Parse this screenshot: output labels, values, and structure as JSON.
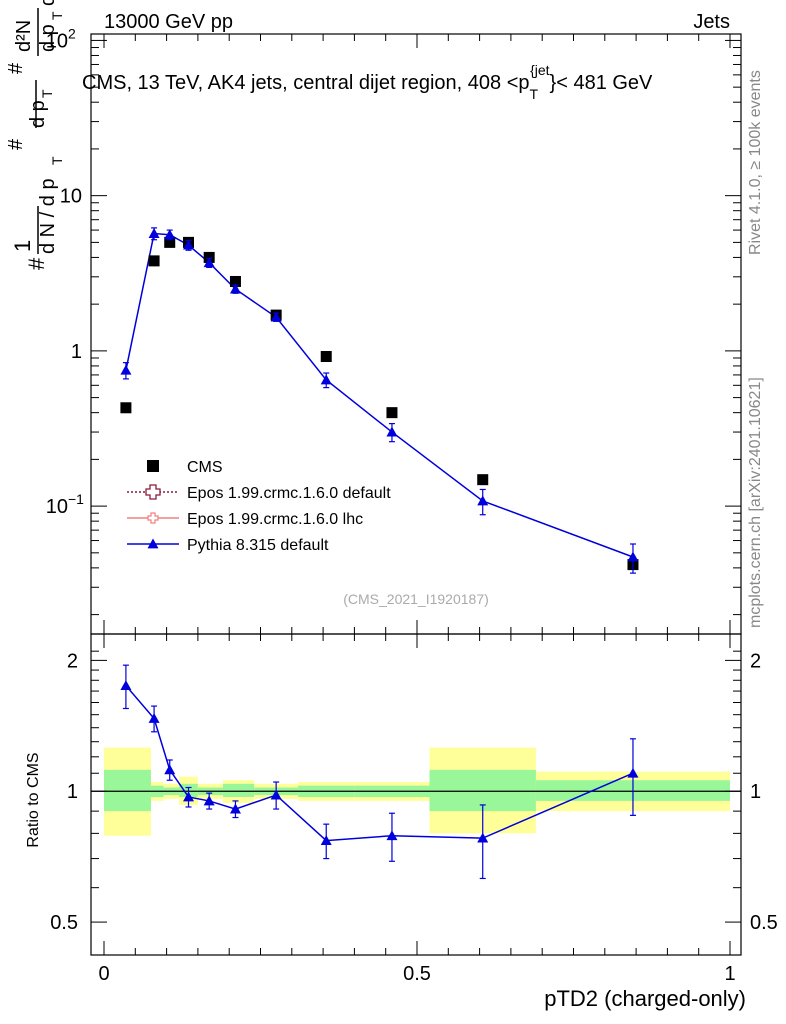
{
  "header": {
    "left": "13000 GeV pp",
    "right": "Jets"
  },
  "side_labels": {
    "rivet": "Rivet 4.1.0, ≥ 100k events",
    "mcplots": "mcplots.cern.ch [arXiv:2401.10621]"
  },
  "chart_data": {
    "type": "scatter",
    "title": "CMS, 13 TeV, AK4 jets, central dijet region, 408 <p_T^{jet}< 481 GeV",
    "title_main": "CMS, 13 TeV, AK4 jets, central dijet region, 408 <p",
    "title_sub": "T",
    "title_sup": "{jet",
    "title_end": "}< 481 GeV",
    "watermark": "(CMS_2021_I1920187)",
    "xlabel": "pTD2 (charged-only)",
    "ylabel_ratio": "Ratio to CMS",
    "xlim": [
      0,
      1
    ],
    "ylim_main": [
      0.015,
      110
    ],
    "yscale_main": "log",
    "ylim_ratio": [
      0.42,
      2.3
    ],
    "yscale_ratio": "log",
    "x_ticks": [
      {
        "value": 0,
        "label": "0"
      },
      {
        "value": 0.5,
        "label": "0.5"
      },
      {
        "value": 1,
        "label": "1"
      }
    ],
    "y_ticks_main": [
      {
        "value": 0.1,
        "label": "10",
        "sup": "−1"
      },
      {
        "value": 1,
        "label": "1",
        "sup": ""
      },
      {
        "value": 10,
        "label": "10",
        "sup": ""
      },
      {
        "value": 100,
        "label": "10",
        "sup": "2"
      }
    ],
    "y_ticks_ratio": [
      {
        "value": 0.5,
        "label": "0.5"
      },
      {
        "value": 1,
        "label": "1"
      },
      {
        "value": 2,
        "label": "2"
      }
    ],
    "legend": [
      {
        "name": "CMS",
        "style": "black-square"
      },
      {
        "name": "Epos 1.99.crmc.1.6.0 default",
        "style": "maroon-open-cross-dotted"
      },
      {
        "name": "Epos 1.99.crmc.1.6.0 lhc",
        "style": "pink-open-cross-solid"
      },
      {
        "name": "Pythia 8.315 default",
        "style": "blue-triangle-solid"
      }
    ],
    "colors": {
      "data": "#000000",
      "pythia": "#0000dd",
      "epos_default": "#8b1a3a",
      "epos_lhc": "#f08080",
      "band_inner": "#99f799",
      "band_outer": "#ffff99"
    },
    "bins": [
      {
        "lo": 0.0,
        "hi": 0.075,
        "x": 0.035,
        "cms": 0.43,
        "pythia": 0.75,
        "pythia_err": 0.09,
        "ratio": 1.75,
        "ratio_err": 0.2,
        "band_inner": [
          0.9,
          1.12
        ],
        "band_outer": [
          0.79,
          1.26
        ]
      },
      {
        "lo": 0.075,
        "hi": 0.095,
        "x": 0.08,
        "cms": 3.8,
        "pythia": 5.7,
        "pythia_err": 0.5,
        "ratio": 1.47,
        "ratio_err": 0.1,
        "band_inner": [
          0.97,
          1.03
        ],
        "band_outer": [
          0.95,
          1.05
        ]
      },
      {
        "lo": 0.095,
        "hi": 0.12,
        "x": 0.105,
        "cms": 5.0,
        "pythia": 5.6,
        "pythia_err": 0.4,
        "ratio": 1.12,
        "ratio_err": 0.06,
        "band_inner": [
          0.98,
          1.02
        ],
        "band_outer": [
          0.96,
          1.04
        ]
      },
      {
        "lo": 0.12,
        "hi": 0.15,
        "x": 0.135,
        "cms": 5.0,
        "pythia": 4.8,
        "pythia_err": 0.35,
        "ratio": 0.97,
        "ratio_err": 0.05,
        "band_inner": [
          0.97,
          1.04
        ],
        "band_outer": [
          0.93,
          1.08
        ]
      },
      {
        "lo": 0.15,
        "hi": 0.19,
        "x": 0.168,
        "cms": 4.0,
        "pythia": 3.7,
        "pythia_err": 0.25,
        "ratio": 0.95,
        "ratio_err": 0.04,
        "band_inner": [
          0.98,
          1.02
        ],
        "band_outer": [
          0.96,
          1.04
        ]
      },
      {
        "lo": 0.19,
        "hi": 0.24,
        "x": 0.21,
        "cms": 2.8,
        "pythia": 2.5,
        "pythia_err": 0.15,
        "ratio": 0.91,
        "ratio_err": 0.04,
        "band_inner": [
          0.97,
          1.04
        ],
        "band_outer": [
          0.94,
          1.06
        ]
      },
      {
        "lo": 0.24,
        "hi": 0.31,
        "x": 0.275,
        "cms": 1.7,
        "pythia": 1.65,
        "pythia_err": 0.1,
        "ratio": 0.98,
        "ratio_err": 0.07,
        "band_inner": [
          0.98,
          1.02
        ],
        "band_outer": [
          0.96,
          1.04
        ]
      },
      {
        "lo": 0.31,
        "hi": 0.4,
        "x": 0.355,
        "cms": 0.92,
        "pythia": 0.65,
        "pythia_err": 0.07,
        "ratio": 0.77,
        "ratio_err": 0.07,
        "band_inner": [
          0.97,
          1.03
        ],
        "band_outer": [
          0.95,
          1.05
        ]
      },
      {
        "lo": 0.4,
        "hi": 0.52,
        "x": 0.46,
        "cms": 0.4,
        "pythia": 0.3,
        "pythia_err": 0.04,
        "ratio": 0.79,
        "ratio_err": 0.1,
        "band_inner": [
          0.97,
          1.03
        ],
        "band_outer": [
          0.95,
          1.05
        ]
      },
      {
        "lo": 0.52,
        "hi": 0.69,
        "x": 0.605,
        "cms": 0.148,
        "pythia": 0.108,
        "pythia_err": 0.02,
        "ratio": 0.78,
        "ratio_err": 0.15,
        "band_inner": [
          0.9,
          1.12
        ],
        "band_outer": [
          0.8,
          1.26
        ]
      },
      {
        "lo": 0.69,
        "hi": 1.0,
        "x": 0.845,
        "cms": 0.042,
        "pythia": 0.047,
        "pythia_err": 0.01,
        "ratio": 1.1,
        "ratio_err": 0.22,
        "band_inner": [
          0.95,
          1.06
        ],
        "band_outer": [
          0.9,
          1.11
        ]
      }
    ]
  }
}
